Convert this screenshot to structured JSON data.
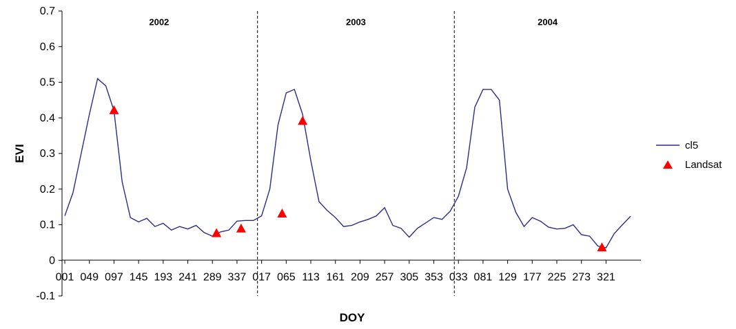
{
  "chart_data": {
    "type": "line",
    "xlabel": "DOY",
    "ylabel": "EVI",
    "ylim": [
      -0.1,
      0.7
    ],
    "yticks": [
      "-0.1",
      "0",
      "0.1",
      "0.2",
      "0.3",
      "0.4",
      "0.5",
      "0.6",
      "0.7"
    ],
    "xtick_labels": [
      "001",
      "049",
      "097",
      "145",
      "193",
      "241",
      "289",
      "337",
      "017",
      "065",
      "113",
      "161",
      "209",
      "257",
      "305",
      "353",
      "033",
      "081",
      "129",
      "177",
      "225",
      "273",
      "321"
    ],
    "year_labels": [
      "2002",
      "2003",
      "2004"
    ],
    "grid": false,
    "legend_position": "right",
    "series": [
      {
        "name": "cl5",
        "type": "line",
        "color": "#2b2b8c",
        "values": [
          0.125,
          0.19,
          0.3,
          0.41,
          0.51,
          0.49,
          0.42,
          0.22,
          0.12,
          0.108,
          0.118,
          0.095,
          0.104,
          0.085,
          0.095,
          0.088,
          0.098,
          0.078,
          0.068,
          0.08,
          0.085,
          0.11,
          0.112,
          0.112,
          0.125,
          0.2,
          0.38,
          0.47,
          0.48,
          0.41,
          0.28,
          0.165,
          0.14,
          0.12,
          0.095,
          0.098,
          0.108,
          0.115,
          0.125,
          0.148,
          0.098,
          0.09,
          0.065,
          0.09,
          0.105,
          0.12,
          0.115,
          0.138,
          0.18,
          0.26,
          0.43,
          0.48,
          0.48,
          0.45,
          0.2,
          0.135,
          0.095,
          0.12,
          0.11,
          0.093,
          0.088,
          0.09,
          0.1,
          0.072,
          0.068,
          0.04,
          0.035,
          0.075,
          0.1,
          0.124
        ]
      },
      {
        "name": "Landsat",
        "type": "scatter",
        "marker": "triangle",
        "color": "#ff0000",
        "points": [
          {
            "index": 6,
            "value": 0.42
          },
          {
            "index": 18.5,
            "value": 0.075
          },
          {
            "index": 21.5,
            "value": 0.088
          },
          {
            "index": 26.5,
            "value": 0.13
          },
          {
            "index": 29,
            "value": 0.39
          },
          {
            "index": 65.5,
            "value": 0.035
          }
        ]
      }
    ],
    "year_boundaries": [
      23.5,
      47.5
    ]
  }
}
